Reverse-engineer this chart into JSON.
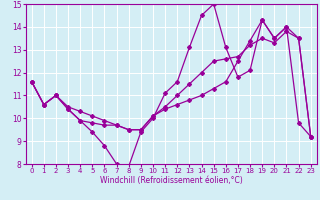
{
  "x_values": [
    0,
    1,
    2,
    3,
    4,
    5,
    6,
    7,
    8,
    9,
    10,
    11,
    12,
    13,
    14,
    15,
    16,
    17,
    18,
    19,
    20,
    21,
    22,
    23
  ],
  "line1": [
    11.6,
    10.6,
    11.0,
    10.4,
    9.9,
    9.4,
    8.8,
    8.0,
    7.9,
    9.4,
    10.0,
    11.1,
    11.6,
    13.1,
    14.5,
    15.0,
    13.1,
    11.8,
    12.1,
    14.3,
    13.5,
    14.0,
    9.8,
    9.2
  ],
  "line2": [
    11.6,
    10.6,
    11.0,
    10.5,
    10.3,
    10.1,
    9.9,
    9.7,
    9.5,
    9.5,
    10.1,
    10.5,
    11.0,
    11.5,
    12.0,
    12.5,
    12.6,
    12.7,
    13.2,
    13.5,
    13.3,
    13.8,
    13.5,
    9.2
  ],
  "line3": [
    11.6,
    10.6,
    11.0,
    10.4,
    9.9,
    9.8,
    9.7,
    9.7,
    9.5,
    9.5,
    10.1,
    10.4,
    10.6,
    10.8,
    11.0,
    11.3,
    11.6,
    12.5,
    13.4,
    14.3,
    13.5,
    14.0,
    13.5,
    9.2
  ],
  "line_color": "#990099",
  "bg_color": "#d4eef5",
  "grid_color": "#ffffff",
  "xlabel": "Windchill (Refroidissement éolien,°C)",
  "xlim": [
    -0.5,
    23.5
  ],
  "ylim": [
    8,
    15
  ],
  "yticks": [
    8,
    9,
    10,
    11,
    12,
    13,
    14,
    15
  ],
  "xticks": [
    0,
    1,
    2,
    3,
    4,
    5,
    6,
    7,
    8,
    9,
    10,
    11,
    12,
    13,
    14,
    15,
    16,
    17,
    18,
    19,
    20,
    21,
    22,
    23
  ],
  "marker": "D",
  "markersize": 2,
  "linewidth": 0.9,
  "tick_fontsize": 5,
  "label_fontsize": 5.5
}
